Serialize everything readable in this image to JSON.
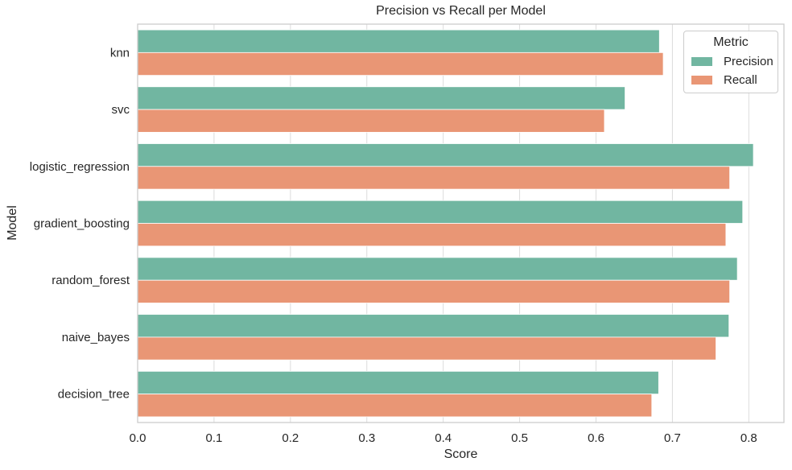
{
  "chart_data": {
    "type": "bar",
    "orientation": "horizontal",
    "title": "Precision vs Recall per Model",
    "xlabel": "Score",
    "ylabel": "Model",
    "categories": [
      "knn",
      "svc",
      "logistic_regression",
      "gradient_boosting",
      "random_forest",
      "naive_bayes",
      "decision_tree"
    ],
    "series": [
      {
        "name": "Precision",
        "color": "#71b6a1",
        "values": [
          0.683,
          0.638,
          0.806,
          0.792,
          0.785,
          0.774,
          0.682
        ]
      },
      {
        "name": "Recall",
        "color": "#e99675",
        "values": [
          0.688,
          0.611,
          0.775,
          0.77,
          0.775,
          0.757,
          0.673
        ]
      }
    ],
    "xlim": [
      0,
      0.846
    ],
    "xticks": [
      "0.0",
      "0.1",
      "0.2",
      "0.3",
      "0.4",
      "0.5",
      "0.6",
      "0.7",
      "0.8"
    ],
    "grid": "vertical",
    "legend": {
      "title": "Metric",
      "position": "upper right"
    },
    "colors": {
      "grid": "#dcdcdc",
      "axis": "#cccccc",
      "text": "#262626"
    }
  }
}
